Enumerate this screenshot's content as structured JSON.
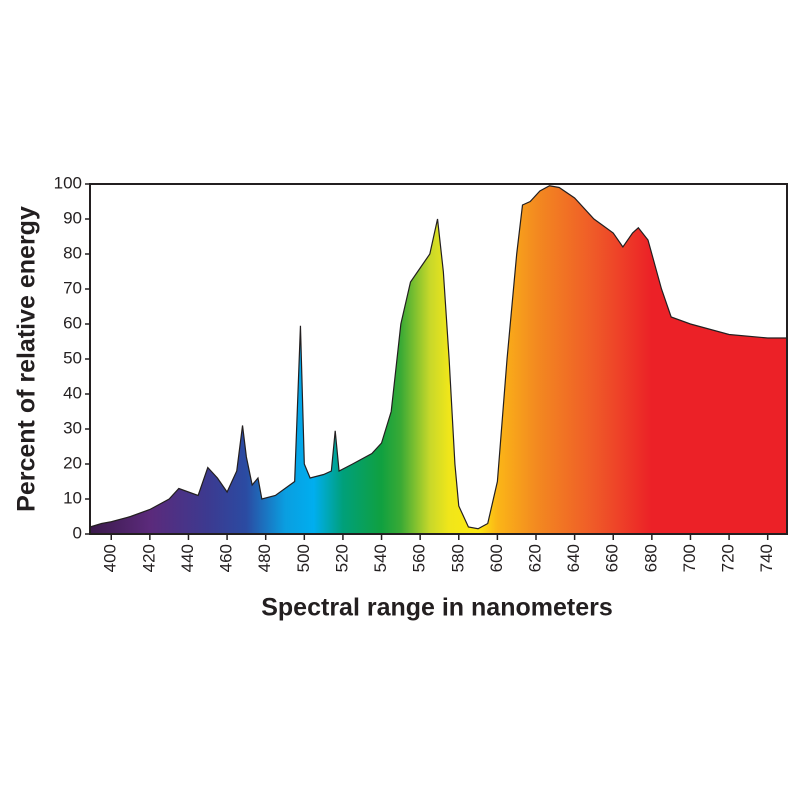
{
  "chart_data": {
    "type": "area",
    "x_label": "Spectral range in nanometers",
    "y_label": "Percent of relative energy",
    "x": [
      389,
      395,
      400,
      410,
      420,
      430,
      435,
      440,
      445,
      450,
      455,
      460,
      465,
      468,
      470,
      473,
      476,
      478,
      485,
      490,
      495,
      498,
      500,
      503,
      510,
      514,
      516,
      518,
      525,
      535,
      540,
      545,
      550,
      555,
      560,
      565,
      569,
      572,
      575,
      578,
      580,
      585,
      590,
      595,
      600,
      605,
      610,
      613,
      617,
      622,
      627,
      632,
      640,
      650,
      655,
      660,
      665,
      670,
      673,
      678,
      685,
      690,
      700,
      720,
      740,
      750
    ],
    "values": [
      2,
      3,
      3.5,
      5,
      7,
      10,
      13,
      12,
      11,
      19,
      16,
      12,
      18,
      31,
      22,
      14,
      16,
      10,
      11,
      13,
      15,
      59.5,
      20,
      16,
      17,
      18,
      29.5,
      18,
      20,
      23,
      26,
      35,
      60,
      72,
      76,
      80,
      90,
      75,
      50,
      20,
      8,
      2,
      1.5,
      3,
      15,
      50,
      80,
      94,
      95,
      98,
      99.5,
      99,
      96,
      90,
      88,
      86,
      82,
      86,
      87.5,
      84,
      70,
      62,
      60,
      57,
      56,
      56
    ],
    "xlim": [
      389,
      750
    ],
    "ylim": [
      0,
      100
    ],
    "xticks": [
      400,
      420,
      440,
      460,
      480,
      500,
      520,
      540,
      560,
      580,
      600,
      620,
      640,
      660,
      680,
      700,
      720,
      740
    ],
    "yticks": [
      0,
      10,
      20,
      30,
      40,
      50,
      60,
      70,
      80,
      90,
      100
    ],
    "grid": false
  }
}
